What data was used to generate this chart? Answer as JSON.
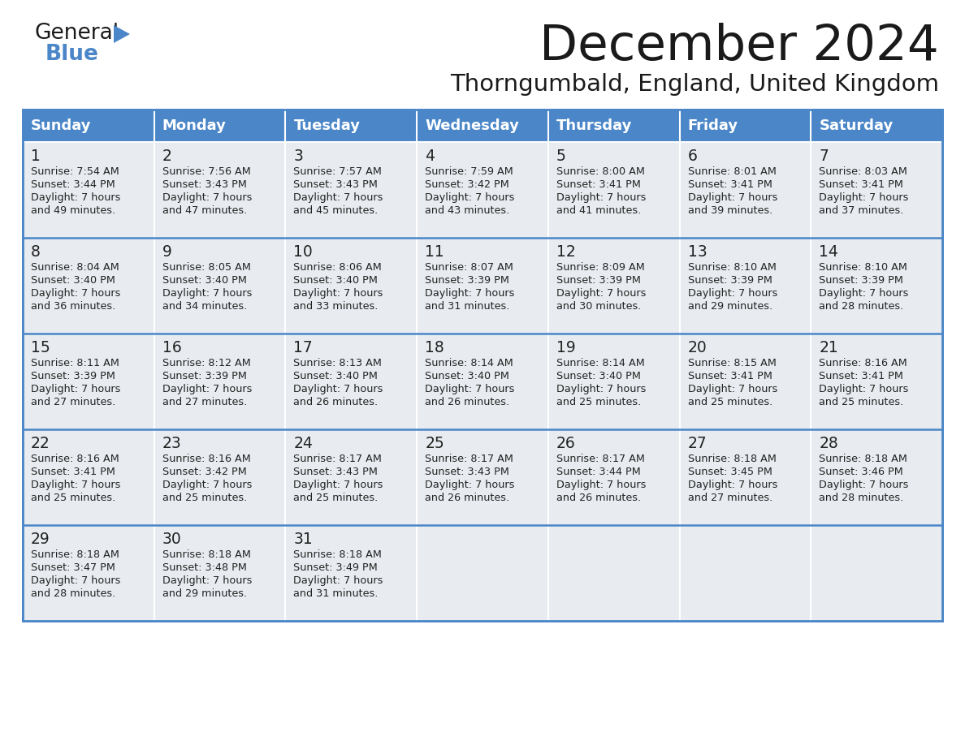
{
  "title": "December 2024",
  "subtitle": "Thorngumbald, England, United Kingdom",
  "days_of_week": [
    "Sunday",
    "Monday",
    "Tuesday",
    "Wednesday",
    "Thursday",
    "Friday",
    "Saturday"
  ],
  "header_bg": "#4a86c8",
  "header_text": "#ffffff",
  "cell_bg": "#e8ecf0",
  "cell_bg_empty": "#f5f7fa",
  "border_color": "#4a86c8",
  "row_sep_color": "#4a86c8",
  "text_color": "#222222",
  "title_color": "#1a1a1a",
  "calendar_data": [
    [
      {
        "day": 1,
        "sunrise": "7:54 AM",
        "sunset": "3:44 PM",
        "daylight": "7 hours and 49 minutes"
      },
      {
        "day": 2,
        "sunrise": "7:56 AM",
        "sunset": "3:43 PM",
        "daylight": "7 hours and 47 minutes"
      },
      {
        "day": 3,
        "sunrise": "7:57 AM",
        "sunset": "3:43 PM",
        "daylight": "7 hours and 45 minutes"
      },
      {
        "day": 4,
        "sunrise": "7:59 AM",
        "sunset": "3:42 PM",
        "daylight": "7 hours and 43 minutes"
      },
      {
        "day": 5,
        "sunrise": "8:00 AM",
        "sunset": "3:41 PM",
        "daylight": "7 hours and 41 minutes"
      },
      {
        "day": 6,
        "sunrise": "8:01 AM",
        "sunset": "3:41 PM",
        "daylight": "7 hours and 39 minutes"
      },
      {
        "day": 7,
        "sunrise": "8:03 AM",
        "sunset": "3:41 PM",
        "daylight": "7 hours and 37 minutes"
      }
    ],
    [
      {
        "day": 8,
        "sunrise": "8:04 AM",
        "sunset": "3:40 PM",
        "daylight": "7 hours and 36 minutes"
      },
      {
        "day": 9,
        "sunrise": "8:05 AM",
        "sunset": "3:40 PM",
        "daylight": "7 hours and 34 minutes"
      },
      {
        "day": 10,
        "sunrise": "8:06 AM",
        "sunset": "3:40 PM",
        "daylight": "7 hours and 33 minutes"
      },
      {
        "day": 11,
        "sunrise": "8:07 AM",
        "sunset": "3:39 PM",
        "daylight": "7 hours and 31 minutes"
      },
      {
        "day": 12,
        "sunrise": "8:09 AM",
        "sunset": "3:39 PM",
        "daylight": "7 hours and 30 minutes"
      },
      {
        "day": 13,
        "sunrise": "8:10 AM",
        "sunset": "3:39 PM",
        "daylight": "7 hours and 29 minutes"
      },
      {
        "day": 14,
        "sunrise": "8:10 AM",
        "sunset": "3:39 PM",
        "daylight": "7 hours and 28 minutes"
      }
    ],
    [
      {
        "day": 15,
        "sunrise": "8:11 AM",
        "sunset": "3:39 PM",
        "daylight": "7 hours and 27 minutes"
      },
      {
        "day": 16,
        "sunrise": "8:12 AM",
        "sunset": "3:39 PM",
        "daylight": "7 hours and 27 minutes"
      },
      {
        "day": 17,
        "sunrise": "8:13 AM",
        "sunset": "3:40 PM",
        "daylight": "7 hours and 26 minutes"
      },
      {
        "day": 18,
        "sunrise": "8:14 AM",
        "sunset": "3:40 PM",
        "daylight": "7 hours and 26 minutes"
      },
      {
        "day": 19,
        "sunrise": "8:14 AM",
        "sunset": "3:40 PM",
        "daylight": "7 hours and 25 minutes"
      },
      {
        "day": 20,
        "sunrise": "8:15 AM",
        "sunset": "3:41 PM",
        "daylight": "7 hours and 25 minutes"
      },
      {
        "day": 21,
        "sunrise": "8:16 AM",
        "sunset": "3:41 PM",
        "daylight": "7 hours and 25 minutes"
      }
    ],
    [
      {
        "day": 22,
        "sunrise": "8:16 AM",
        "sunset": "3:41 PM",
        "daylight": "7 hours and 25 minutes"
      },
      {
        "day": 23,
        "sunrise": "8:16 AM",
        "sunset": "3:42 PM",
        "daylight": "7 hours and 25 minutes"
      },
      {
        "day": 24,
        "sunrise": "8:17 AM",
        "sunset": "3:43 PM",
        "daylight": "7 hours and 25 minutes"
      },
      {
        "day": 25,
        "sunrise": "8:17 AM",
        "sunset": "3:43 PM",
        "daylight": "7 hours and 26 minutes"
      },
      {
        "day": 26,
        "sunrise": "8:17 AM",
        "sunset": "3:44 PM",
        "daylight": "7 hours and 26 minutes"
      },
      {
        "day": 27,
        "sunrise": "8:18 AM",
        "sunset": "3:45 PM",
        "daylight": "7 hours and 27 minutes"
      },
      {
        "day": 28,
        "sunrise": "8:18 AM",
        "sunset": "3:46 PM",
        "daylight": "7 hours and 28 minutes"
      }
    ],
    [
      {
        "day": 29,
        "sunrise": "8:18 AM",
        "sunset": "3:47 PM",
        "daylight": "7 hours and 28 minutes"
      },
      {
        "day": 30,
        "sunrise": "8:18 AM",
        "sunset": "3:48 PM",
        "daylight": "7 hours and 29 minutes"
      },
      {
        "day": 31,
        "sunrise": "8:18 AM",
        "sunset": "3:49 PM",
        "daylight": "7 hours and 31 minutes"
      },
      null,
      null,
      null,
      null
    ]
  ],
  "logo_color_general": "#1a1a1a",
  "logo_color_blue": "#4a86c8",
  "logo_triangle_color": "#4a86c8",
  "fig_width": 11.88,
  "fig_height": 9.18,
  "dpi": 100
}
